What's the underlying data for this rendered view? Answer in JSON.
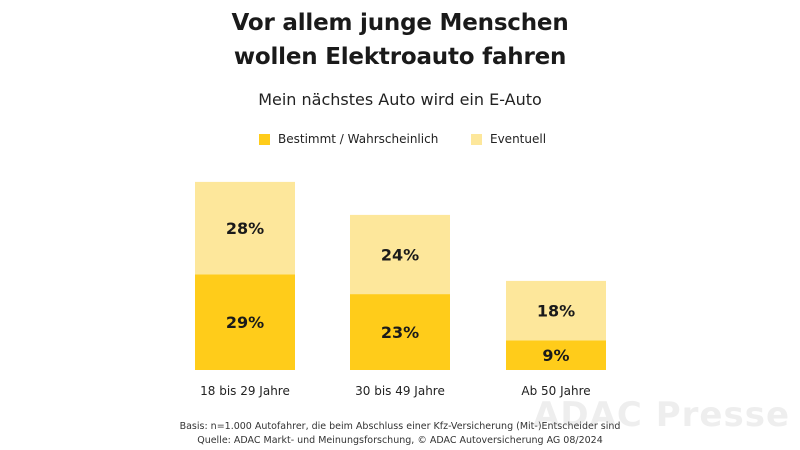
{
  "colors": {
    "primary": "#FFCC1A",
    "secondary": "#FDE79B"
  },
  "watermark": "ADAC Presse",
  "footnote": {
    "line1": "Basis: n=1.000 Autofahrer, die beim Abschluss einer Kfz-Versicherung (Mit-)Entscheider sind",
    "line2": "Quelle: ADAC Markt- und Meinungsforschung, © ADAC Autoversicherung AG 08/2024"
  },
  "chart_data": {
    "type": "bar",
    "stacked": true,
    "title": "Vor allem junge Menschen wollen Elektroauto fahren",
    "title_lines": [
      "Vor allem junge Menschen",
      "wollen Elektroauto fahren"
    ],
    "subtitle": "Mein nächstes Auto wird ein E-Auto",
    "categories": [
      "18 bis 29 Jahre",
      "30 bis 49 Jahre",
      "Ab 50 Jahre"
    ],
    "series": [
      {
        "name": "Bestimmt / Wahrscheinlich",
        "values": [
          29,
          23,
          9
        ],
        "labels": [
          "29%",
          "23%",
          "9%"
        ]
      },
      {
        "name": "Eventuell",
        "values": [
          28,
          24,
          18
        ],
        "labels": [
          "28%",
          "24%",
          "18%"
        ]
      }
    ],
    "unit": "%",
    "grid": false,
    "legend_position": "top-center"
  }
}
